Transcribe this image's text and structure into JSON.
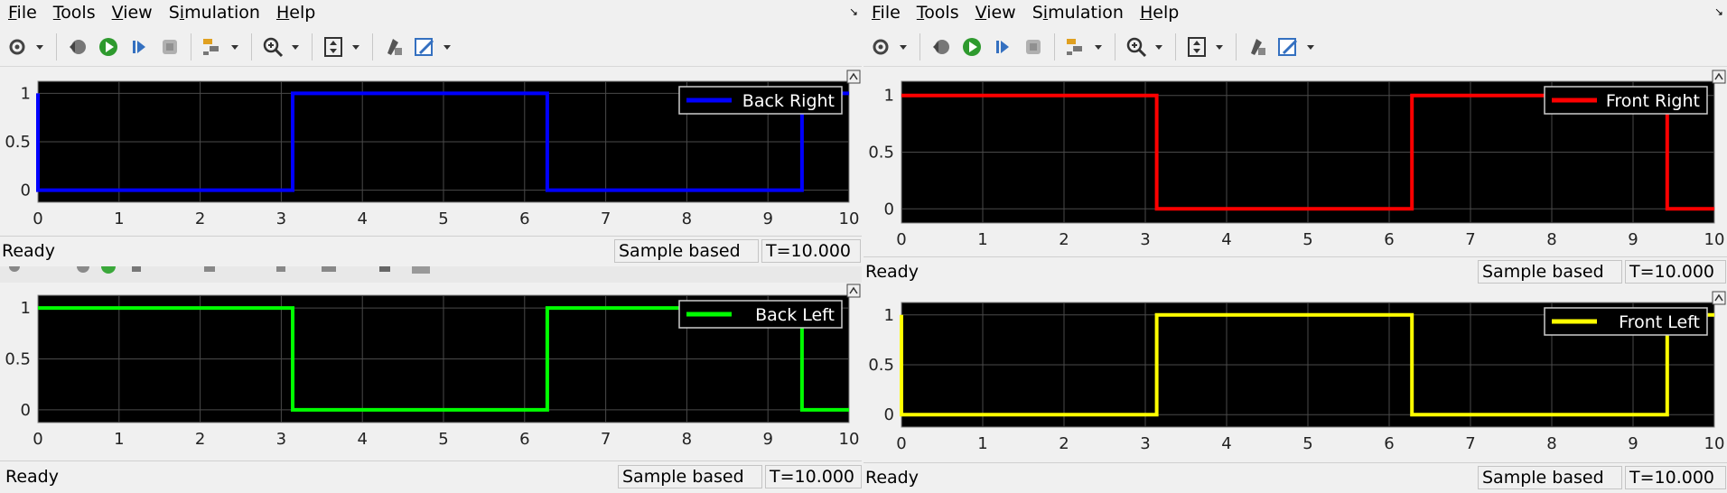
{
  "menus": [
    "File",
    "Tools",
    "View",
    "Simulation",
    "Help"
  ],
  "menu_underline_index": [
    0,
    0,
    0,
    1,
    0
  ],
  "status": {
    "ready": "Ready",
    "mode": "Sample based",
    "time": "T=10.000"
  },
  "scopes": [
    {
      "id": "back-right",
      "legend": "Back Right",
      "color": "#0000ff",
      "chart_data": {
        "type": "line",
        "series": [
          {
            "name": "Back Right",
            "x": [
              0,
              0,
              3.14,
              3.14,
              6.28,
              6.28,
              9.42,
              9.42,
              10
            ],
            "values": [
              1,
              0,
              0,
              1,
              1,
              0,
              0,
              1,
              1
            ]
          }
        ],
        "xlim": [
          0,
          10
        ],
        "ylim": [
          0,
          1
        ],
        "xticks": [
          "0",
          "1",
          "2",
          "3",
          "4",
          "5",
          "6",
          "7",
          "8",
          "9",
          "10"
        ],
        "yticks": [
          "0",
          "0.5",
          "1"
        ],
        "grid": true,
        "legend_position": "top-right"
      }
    },
    {
      "id": "front-right",
      "legend": "Front Right",
      "color": "#ff0000",
      "chart_data": {
        "type": "line",
        "series": [
          {
            "name": "Front Right",
            "x": [
              0,
              3.14,
              3.14,
              6.28,
              6.28,
              9.42,
              9.42,
              10
            ],
            "values": [
              1,
              1,
              0,
              0,
              1,
              1,
              0,
              0
            ]
          }
        ],
        "xlim": [
          0,
          10
        ],
        "ylim": [
          0,
          1
        ],
        "xticks": [
          "0",
          "1",
          "2",
          "3",
          "4",
          "5",
          "6",
          "7",
          "8",
          "9",
          "10"
        ],
        "yticks": [
          "0",
          "0.5",
          "1"
        ],
        "grid": true,
        "legend_position": "top-right"
      }
    },
    {
      "id": "back-left",
      "legend": "Back Left",
      "color": "#00ff00",
      "chart_data": {
        "type": "line",
        "series": [
          {
            "name": "Back Left",
            "x": [
              0,
              3.14,
              3.14,
              6.28,
              6.28,
              9.42,
              9.42,
              10
            ],
            "values": [
              1,
              1,
              0,
              0,
              1,
              1,
              0,
              0
            ]
          }
        ],
        "xlim": [
          0,
          10
        ],
        "ylim": [
          0,
          1
        ],
        "xticks": [
          "0",
          "1",
          "2",
          "3",
          "4",
          "5",
          "6",
          "7",
          "8",
          "9",
          "10"
        ],
        "yticks": [
          "0",
          "0.5",
          "1"
        ],
        "grid": true,
        "legend_position": "top-right"
      }
    },
    {
      "id": "front-left",
      "legend": "Front Left",
      "color": "#ffff00",
      "chart_data": {
        "type": "line",
        "series": [
          {
            "name": "Front Left",
            "x": [
              0,
              0,
              3.14,
              3.14,
              6.28,
              6.28,
              9.42,
              9.42,
              10
            ],
            "values": [
              1,
              0,
              0,
              1,
              1,
              0,
              0,
              1,
              1
            ]
          }
        ],
        "xlim": [
          0,
          10
        ],
        "ylim": [
          0,
          1
        ],
        "xticks": [
          "0",
          "1",
          "2",
          "3",
          "4",
          "5",
          "6",
          "7",
          "8",
          "9",
          "10"
        ],
        "yticks": [
          "0",
          "0.5",
          "1"
        ],
        "grid": true,
        "legend_position": "top-right"
      }
    }
  ]
}
